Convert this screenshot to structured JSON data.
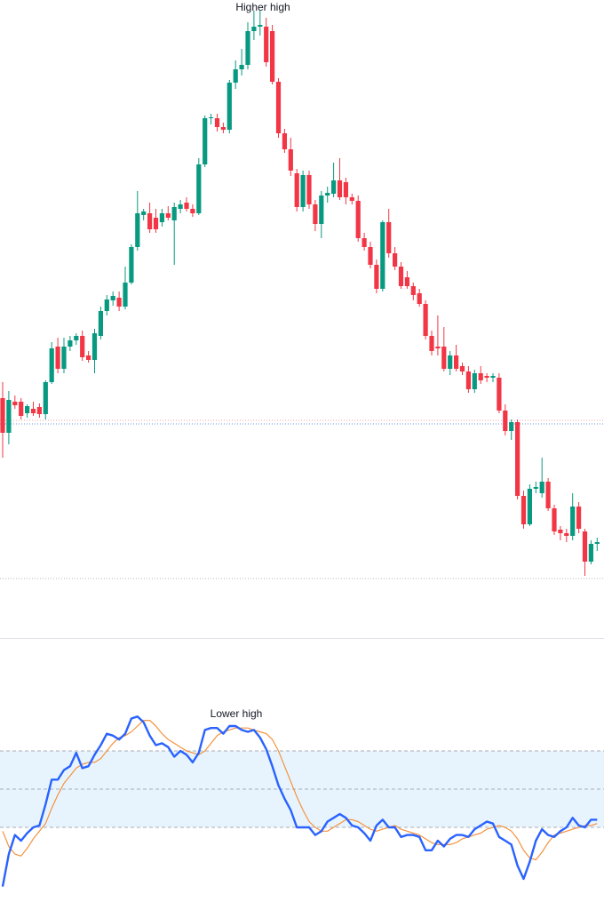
{
  "chart_data": [
    {
      "type": "candlestick",
      "annotation": "Higher high",
      "up_color": "#089981",
      "down_color": "#f23645",
      "ylim": [
        282,
        1000
      ],
      "levels": [
        {
          "value": 527,
          "color": "#f7a1a9"
        },
        {
          "value": 523,
          "color": "#6f8fd8"
        },
        {
          "value": 349,
          "color": "#b2b5be"
        }
      ],
      "candles": [
        [
          552,
          570,
          485,
          513
        ],
        [
          513,
          560,
          500,
          550
        ],
        [
          548,
          555,
          540,
          544
        ],
        [
          548,
          552,
          528,
          532
        ],
        [
          535,
          545,
          530,
          543
        ],
        [
          540,
          548,
          532,
          535
        ],
        [
          542,
          546,
          530,
          534
        ],
        [
          534,
          572,
          528,
          570
        ],
        [
          570,
          615,
          568,
          608
        ],
        [
          610,
          620,
          580,
          585
        ],
        [
          585,
          620,
          580,
          610
        ],
        [
          610,
          622,
          605,
          617
        ],
        [
          617,
          625,
          612,
          622
        ],
        [
          622,
          628,
          594,
          598
        ],
        [
          600,
          605,
          592,
          595
        ],
        [
          595,
          630,
          580,
          625
        ],
        [
          622,
          655,
          618,
          650
        ],
        [
          650,
          668,
          645,
          663
        ],
        [
          662,
          672,
          656,
          667
        ],
        [
          665,
          672,
          650,
          655
        ],
        [
          655,
          700,
          652,
          682
        ],
        [
          682,
          725,
          680,
          722
        ],
        [
          722,
          785,
          718,
          760
        ],
        [
          758,
          765,
          752,
          762
        ],
        [
          760,
          772,
          738,
          742
        ],
        [
          755,
          765,
          738,
          742
        ],
        [
          750,
          765,
          745,
          760
        ],
        [
          760,
          768,
          752,
          755
        ],
        [
          752,
          772,
          702,
          767
        ],
        [
          765,
          775,
          760,
          770
        ],
        [
          772,
          778,
          762,
          765
        ],
        [
          765,
          770,
          756,
          760
        ],
        [
          760,
          822,
          758,
          815
        ],
        [
          815,
          870,
          812,
          867
        ],
        [
          867,
          872,
          860,
          868
        ],
        [
          867,
          872,
          852,
          857
        ],
        [
          857,
          862,
          850,
          854
        ],
        [
          854,
          910,
          850,
          907
        ],
        [
          907,
          932,
          900,
          922
        ],
        [
          922,
          945,
          915,
          927
        ],
        [
          927,
          975,
          922,
          965
        ],
        [
          965,
          988,
          955,
          970
        ],
        [
          970,
          988,
          960,
          972
        ],
        [
          970,
          980,
          925,
          930
        ],
        [
          965,
          972,
          905,
          908
        ],
        [
          908,
          912,
          845,
          850
        ],
        [
          850,
          855,
          828,
          832
        ],
        [
          832,
          845,
          802,
          808
        ],
        [
          805,
          810,
          762,
          767
        ],
        [
          767,
          808,
          762,
          803
        ],
        [
          803,
          808,
          765,
          770
        ],
        [
          770,
          775,
          740,
          748
        ],
        [
          748,
          785,
          732,
          780
        ],
        [
          780,
          790,
          772,
          783
        ],
        [
          782,
          817,
          778,
          797
        ],
        [
          797,
          822,
          775,
          778
        ],
        [
          795,
          800,
          770,
          778
        ],
        [
          778,
          782,
          770,
          774
        ],
        [
          774,
          780,
          728,
          732
        ],
        [
          732,
          738,
          718,
          722
        ],
        [
          722,
          728,
          698,
          702
        ],
        [
          702,
          708,
          670,
          675
        ],
        [
          675,
          752,
          672,
          750
        ],
        [
          750,
          765,
          710,
          715
        ],
        [
          715,
          722,
          696,
          700
        ],
        [
          700,
          705,
          675,
          678
        ],
        [
          688,
          695,
          675,
          678
        ],
        [
          678,
          682,
          662,
          668
        ],
        [
          670,
          675,
          655,
          658
        ],
        [
          658,
          662,
          618,
          622
        ],
        [
          622,
          628,
          600,
          605
        ],
        [
          610,
          645,
          600,
          608
        ],
        [
          610,
          632,
          582,
          585
        ],
        [
          585,
          605,
          578,
          600
        ],
        [
          600,
          612,
          582,
          585
        ],
        [
          588,
          592,
          578,
          582
        ],
        [
          582,
          588,
          558,
          562
        ],
        [
          562,
          584,
          558,
          580
        ],
        [
          580,
          588,
          568,
          572
        ],
        [
          577,
          580,
          570,
          575
        ],
        [
          575,
          580,
          570,
          577
        ],
        [
          575,
          580,
          535,
          538
        ],
        [
          538,
          545,
          510,
          515
        ],
        [
          515,
          528,
          505,
          525
        ],
        [
          525,
          528,
          438,
          442
        ],
        [
          442,
          448,
          405,
          410
        ],
        [
          410,
          455,
          408,
          450
        ],
        [
          450,
          458,
          445,
          452
        ],
        [
          445,
          485,
          440,
          458
        ],
        [
          458,
          462,
          425,
          428
        ],
        [
          428,
          432,
          398,
          402
        ],
        [
          404,
          408,
          392,
          400
        ],
        [
          400,
          405,
          390,
          397
        ],
        [
          397,
          445,
          392,
          430
        ],
        [
          430,
          435,
          400,
          405
        ],
        [
          402,
          405,
          352,
          368
        ],
        [
          368,
          392,
          365,
          388
        ],
        [
          388,
          395,
          380,
          390
        ]
      ]
    },
    {
      "type": "line",
      "annotation": "Lower high",
      "ylim": [
        -10,
        110
      ],
      "bands": [
        30,
        50,
        70
      ],
      "band_color": "#e8f4fd",
      "series": [
        {
          "color": "#2962ff",
          "values": [
            -1,
            16,
            26,
            23,
            27,
            30,
            31,
            42,
            55,
            55,
            60,
            62,
            69,
            61,
            62,
            68,
            73,
            79,
            78,
            76,
            79,
            87,
            88,
            85,
            78,
            73,
            74,
            72,
            67,
            70,
            68,
            64,
            69,
            81,
            82,
            82,
            79,
            83,
            83,
            81,
            80,
            81,
            77,
            71,
            62,
            52,
            45,
            39,
            30,
            30,
            30,
            26,
            28,
            33,
            35,
            37,
            35,
            31,
            30,
            27,
            23,
            31,
            34,
            30,
            30,
            25,
            26,
            26,
            25,
            18,
            18,
            23,
            20,
            24,
            26,
            26,
            25,
            29,
            31,
            33,
            32,
            25,
            23,
            21,
            10,
            3,
            12,
            23,
            29,
            26,
            25,
            28,
            30,
            35,
            31,
            30,
            34,
            34
          ]
        },
        {
          "color": "#f5923e",
          "values": [
            28,
            20,
            16,
            15,
            19,
            24,
            28,
            32,
            40,
            47,
            53,
            57,
            61,
            63,
            64,
            64,
            66,
            70,
            74,
            77,
            78,
            80,
            83,
            86,
            86,
            83,
            79,
            76,
            74,
            72,
            70,
            69,
            68,
            70,
            74,
            78,
            80,
            81,
            82,
            82,
            82,
            81,
            80,
            79,
            76,
            70,
            62,
            54,
            46,
            39,
            33,
            30,
            28,
            28,
            30,
            32,
            34,
            34,
            33,
            31,
            29,
            28,
            29,
            30,
            31,
            29,
            28,
            27,
            26,
            24,
            22,
            21,
            21,
            21,
            22,
            24,
            25,
            26,
            27,
            29,
            30,
            31,
            30,
            28,
            24,
            18,
            14,
            13,
            17,
            22,
            26,
            27,
            28,
            29,
            30,
            31,
            31,
            32
          ]
        }
      ]
    }
  ]
}
